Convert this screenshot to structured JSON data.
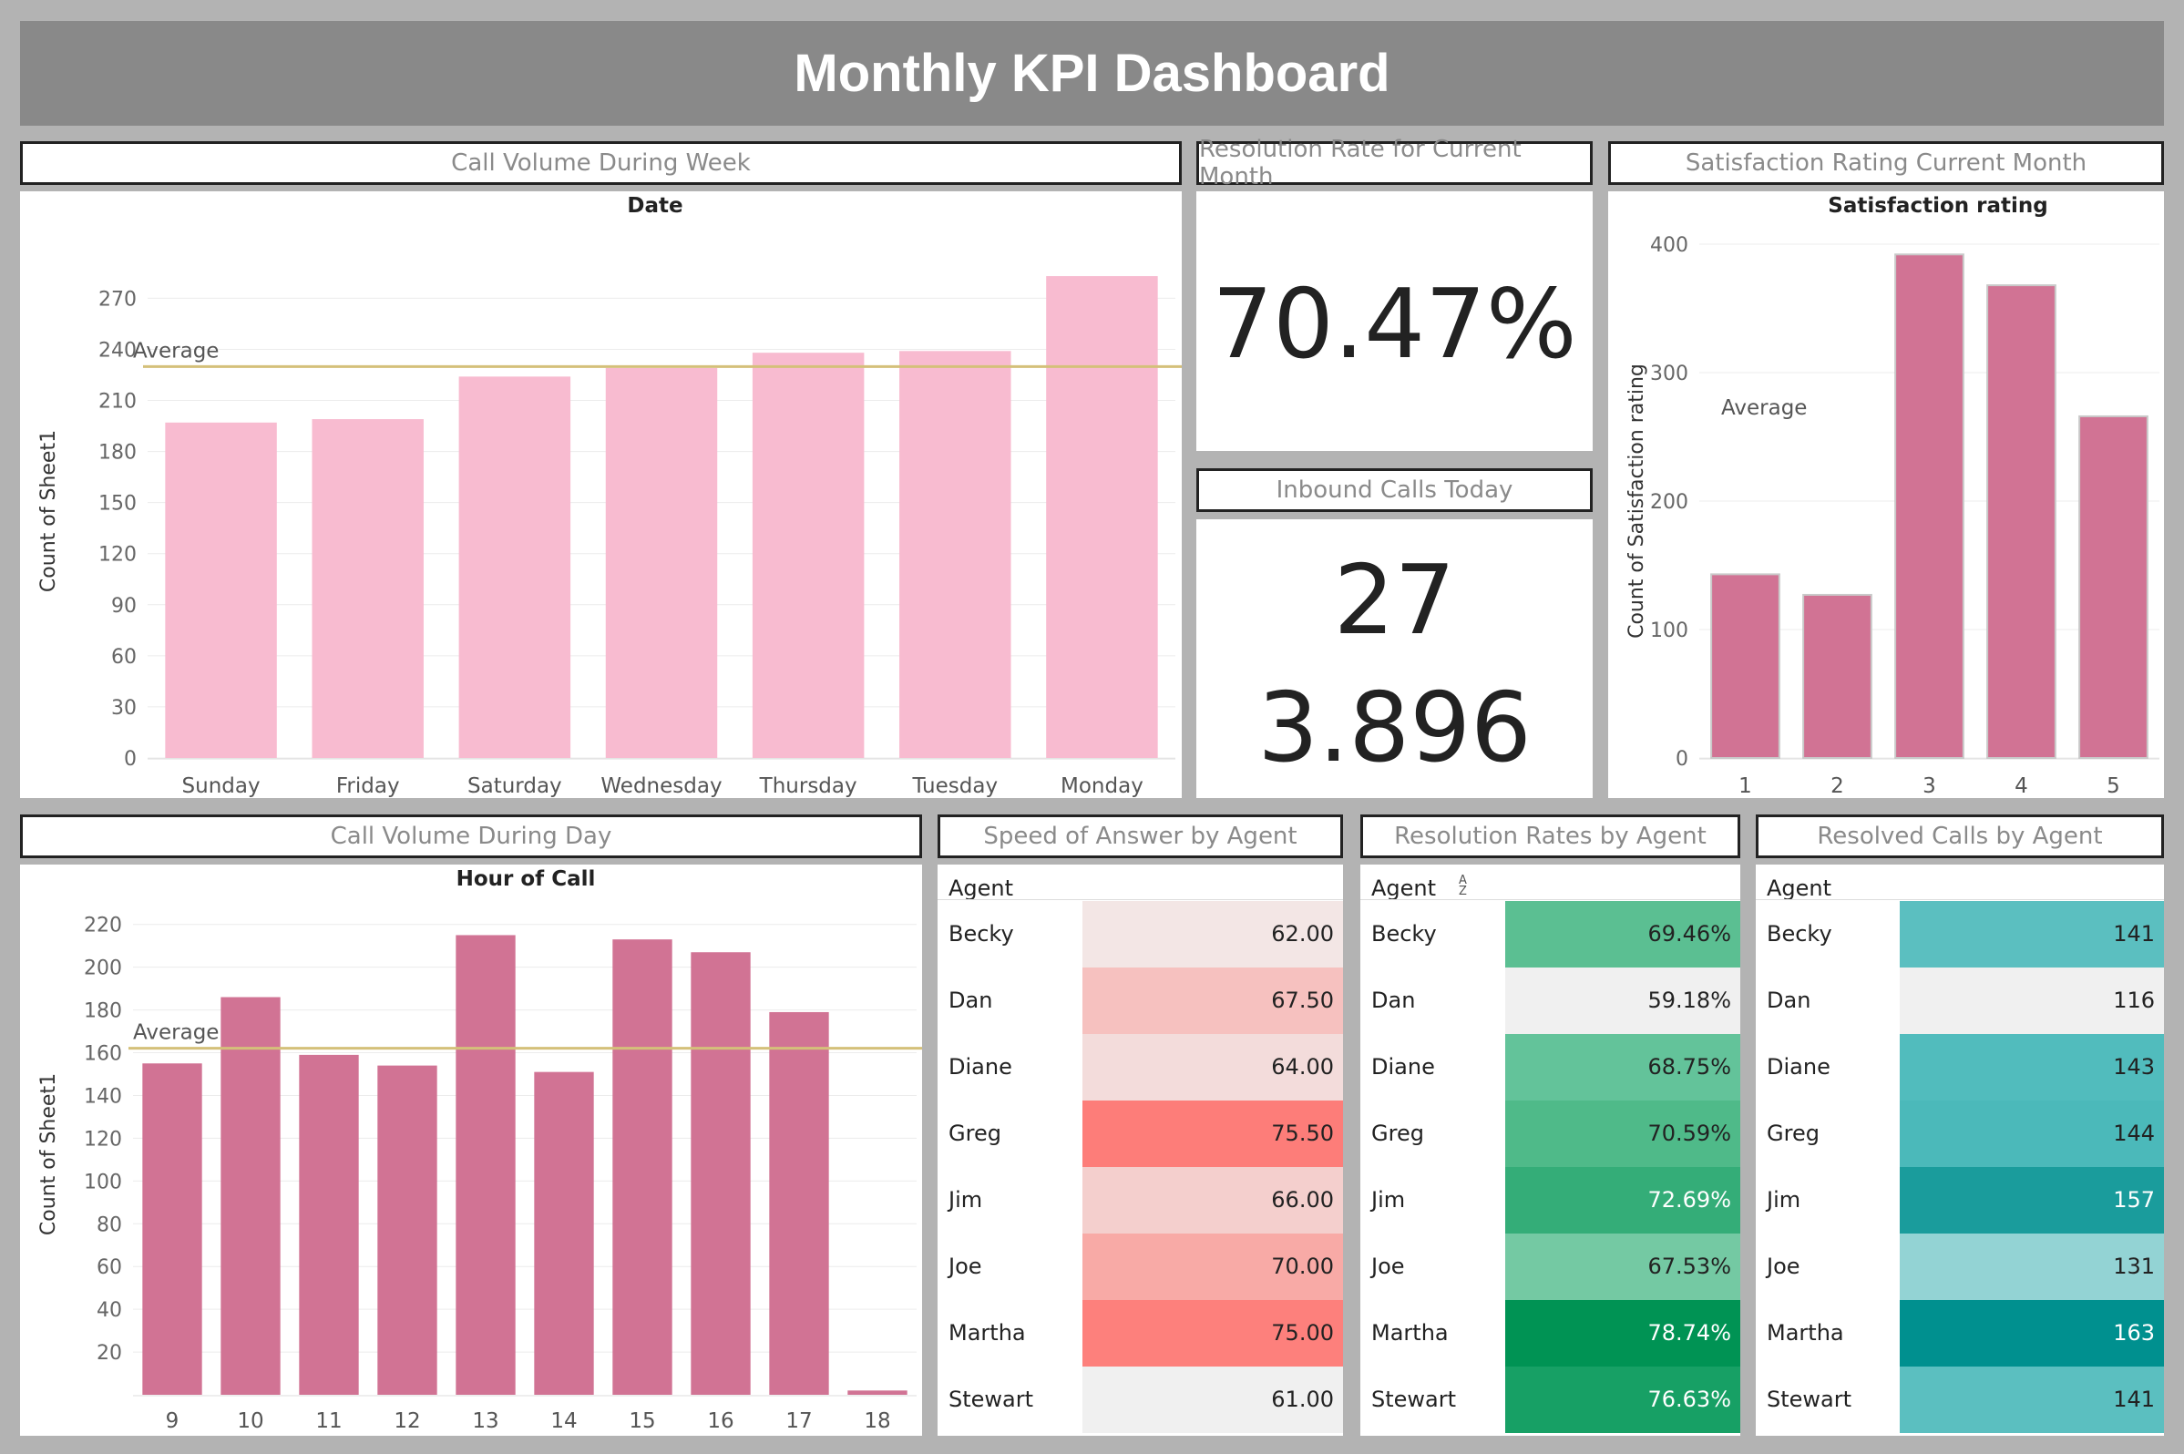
{
  "dashboard": {
    "title": "Monthly KPI Dashboard"
  },
  "panels": {
    "call_week": "Call Volume During Week",
    "resolution_rate": "Resolution Rate for Current Month",
    "satisfaction": "Satisfaction Rating Current Month",
    "inbound": "Inbound Calls Today",
    "call_day": "Call Volume During Day",
    "speed": "Speed of Answer by Agent",
    "res_rates": "Resolution Rates by Agent",
    "resolved": "Resolved Calls by Agent"
  },
  "kpis": {
    "resolution_rate_value": "70.47%",
    "inbound_calls_value": "27",
    "inbound_secondary_value": "3.896"
  },
  "colors": {
    "light_pink": "#f8bbd0",
    "dark_pink": "#d17394",
    "avg_line": "#d8c27a",
    "teal_strong": "#00948f",
    "green_strong": "#009354"
  },
  "chart_data": [
    {
      "type": "bar",
      "title": "Date",
      "xlabel": "",
      "ylabel": "Count of Sheet1",
      "categories": [
        "Sunday",
        "Friday",
        "Saturday",
        "Wednesday",
        "Thursday",
        "Tuesday",
        "Monday"
      ],
      "values": [
        197,
        199,
        224,
        229,
        238,
        239,
        283
      ],
      "yticks": [
        0,
        30,
        60,
        90,
        120,
        150,
        180,
        210,
        240,
        270
      ],
      "ylim": [
        0,
        290
      ],
      "reference_line": {
        "label": "Average",
        "value": 229.9
      },
      "color": "#f8bbd0"
    },
    {
      "type": "bar",
      "title": "Satisfaction rating",
      "xlabel": "",
      "ylabel": "Count of Satisfaction rating",
      "categories": [
        "1",
        "2",
        "3",
        "4",
        "5"
      ],
      "values": [
        143,
        127,
        392,
        368,
        266
      ],
      "yticks": [
        0,
        100,
        200,
        300,
        400
      ],
      "ylim": [
        0,
        400
      ],
      "reference_line": {
        "label": "Average",
        "value": 259.2
      },
      "color": "#d17394"
    },
    {
      "type": "bar",
      "title": "Hour of Call",
      "xlabel": "",
      "ylabel": "Count of Sheet1",
      "categories": [
        "9",
        "10",
        "11",
        "12",
        "13",
        "14",
        "15",
        "16",
        "17",
        "18"
      ],
      "values": [
        155,
        186,
        159,
        154,
        215,
        151,
        213,
        207,
        179,
        2
      ],
      "yticks": [
        20,
        40,
        60,
        80,
        100,
        120,
        140,
        160,
        180,
        200,
        220
      ],
      "ylim": [
        0,
        225
      ],
      "reference_line": {
        "label": "Average",
        "value": 162.1
      },
      "color": "#d17394"
    },
    {
      "type": "table",
      "title": "Speed of Answer by Agent",
      "header": "Agent",
      "rows": [
        {
          "agent": "Becky",
          "value": "62.00",
          "color": "#f3e6e5"
        },
        {
          "agent": "Dan",
          "value": "67.50",
          "color": "#f6c1bf"
        },
        {
          "agent": "Diane",
          "value": "64.00",
          "color": "#f3dcdb"
        },
        {
          "agent": "Greg",
          "value": "75.50",
          "color": "#fd7d79"
        },
        {
          "agent": "Jim",
          "value": "66.00",
          "color": "#f4cfcd"
        },
        {
          "agent": "Joe",
          "value": "70.00",
          "color": "#f8aaa6"
        },
        {
          "agent": "Martha",
          "value": "75.00",
          "color": "#fd807c"
        },
        {
          "agent": "Stewart",
          "value": "61.00",
          "color": "#f0f0f0"
        }
      ]
    },
    {
      "type": "table",
      "title": "Resolution Rates by Agent",
      "header": "Agent",
      "rows": [
        {
          "agent": "Becky",
          "value": "69.46%",
          "color": "#5bbf92"
        },
        {
          "agent": "Dan",
          "value": "59.18%",
          "color": "#f0f0f0"
        },
        {
          "agent": "Diane",
          "value": "68.75%",
          "color": "#63c39a"
        },
        {
          "agent": "Greg",
          "value": "70.59%",
          "color": "#4fba89"
        },
        {
          "agent": "Jim",
          "value": "72.69%",
          "color": "#34ad78"
        },
        {
          "agent": "Joe",
          "value": "67.53%",
          "color": "#74c9a3"
        },
        {
          "agent": "Martha",
          "value": "78.74%",
          "color": "#009354"
        },
        {
          "agent": "Stewart",
          "value": "76.63%",
          "color": "#17a065"
        }
      ]
    },
    {
      "type": "table",
      "title": "Resolved Calls by Agent",
      "header": "Agent",
      "rows": [
        {
          "agent": "Becky",
          "value": "141",
          "color": "#5bbfc0"
        },
        {
          "agent": "Dan",
          "value": "116",
          "color": "#f0f0f0"
        },
        {
          "agent": "Diane",
          "value": "143",
          "color": "#51bcbd"
        },
        {
          "agent": "Greg",
          "value": "144",
          "color": "#4bb9ba"
        },
        {
          "agent": "Jim",
          "value": "157",
          "color": "#1a9c9c"
        },
        {
          "agent": "Joe",
          "value": "131",
          "color": "#93d3d4"
        },
        {
          "agent": "Martha",
          "value": "163",
          "color": "#00908f"
        },
        {
          "agent": "Stewart",
          "value": "141",
          "color": "#5bbfc0"
        }
      ]
    }
  ]
}
